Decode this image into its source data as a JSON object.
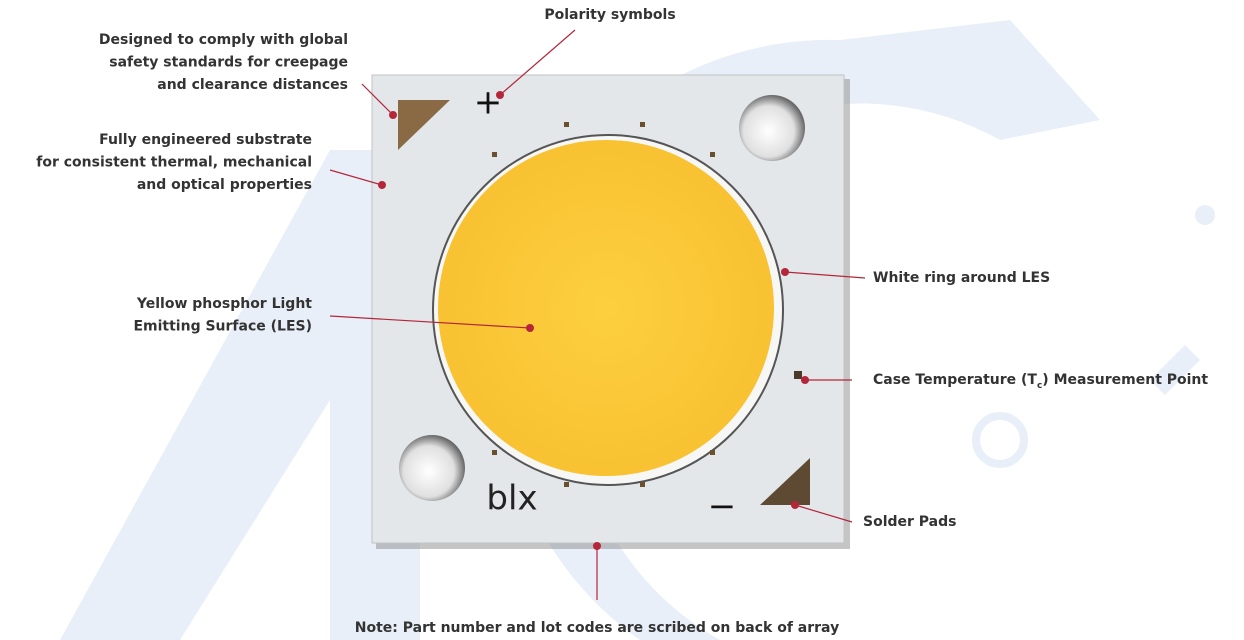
{
  "callouts": {
    "polarity": {
      "lines": [
        "Polarity symbols"
      ]
    },
    "creepage": {
      "lines": [
        "Designed to comply with global",
        "safety standards for creepage",
        "and clearance distances"
      ]
    },
    "substrate": {
      "lines": [
        "Fully engineered substrate",
        "for consistent thermal, mechanical",
        "and optical properties"
      ]
    },
    "les": {
      "lines": [
        "Yellow phosphor Light",
        "Emitting Surface (LES)"
      ]
    },
    "ring": {
      "lines": [
        "White ring around LES"
      ]
    },
    "case_temp": {
      "before": "Case Temperature (T",
      "subscript": "c",
      "after": ") Measurement Point"
    },
    "solder": {
      "lines": [
        "Solder Pads"
      ]
    },
    "note": {
      "lines": [
        "Note: Part number and lot codes are scribed on back of array"
      ]
    }
  },
  "chip": {
    "plus": "+",
    "minus": "−",
    "marking": "blx"
  }
}
